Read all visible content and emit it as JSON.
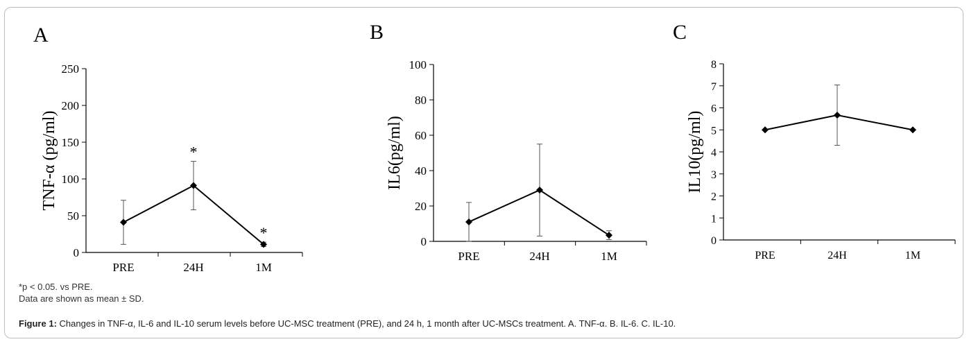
{
  "notes": {
    "significance": "*p < 0.05. vs PRE.",
    "data_description": "Data are shown as mean ± SD."
  },
  "caption": {
    "label": "Figure 1:",
    "text": "Changes in TNF-α, IL-6 and IL-10 serum levels before UC-MSC treatment (PRE), and 24 h, 1 month after UC-MSCs treatment. A. TNF-α. B. IL-6. C. IL-10."
  },
  "colors": {
    "line": "#000000",
    "axis": "#000000",
    "frame": "#bdbdbd"
  },
  "chart_data": [
    {
      "type": "line",
      "panel_label": "A",
      "ylabel": "TNF-α  (pg/ml)",
      "categories": [
        "PRE",
        "24H",
        "1M"
      ],
      "values": [
        41,
        91,
        11
      ],
      "errors": [
        30,
        33,
        3
      ],
      "annotations": [
        "",
        "*",
        "*"
      ],
      "ylim": [
        0,
        250
      ],
      "yticks": [
        0,
        50,
        100,
        150,
        200,
        250
      ],
      "grid": false
    },
    {
      "type": "line",
      "panel_label": "B",
      "ylabel": "IL6(pg/ml)",
      "categories": [
        "PRE",
        "24H",
        "1M"
      ],
      "values": [
        11,
        29,
        3.5
      ],
      "errors": [
        11,
        26,
        2.5
      ],
      "annotations": [
        "",
        "",
        ""
      ],
      "ylim": [
        0,
        100
      ],
      "yticks": [
        0,
        20,
        40,
        60,
        80,
        100
      ],
      "grid": false
    },
    {
      "type": "line",
      "panel_label": "C",
      "ylabel": "IL10(pg/ml)",
      "categories": [
        "PRE",
        "24H",
        "1M"
      ],
      "values": [
        5,
        5.67,
        5
      ],
      "errors": [
        0,
        1.37,
        0
      ],
      "annotations": [
        "",
        "",
        ""
      ],
      "ylim": [
        0,
        8
      ],
      "yticks": [
        0,
        1,
        2,
        3,
        4,
        5,
        6,
        7,
        8
      ],
      "grid": false
    }
  ]
}
